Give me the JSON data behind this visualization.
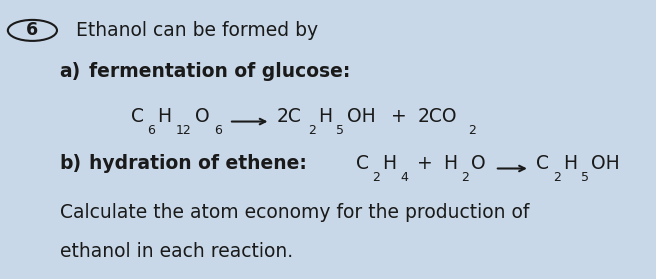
{
  "background_color": "#c8d8e8",
  "text_color": "#1a1a1a",
  "fig_width": 6.56,
  "fig_height": 2.79,
  "dpi": 100,
  "circle_number": "6",
  "line1": "Ethanol can be formed by",
  "line5": "Calculate the atom economy for the production of",
  "line6": "ethanol in each reaction."
}
